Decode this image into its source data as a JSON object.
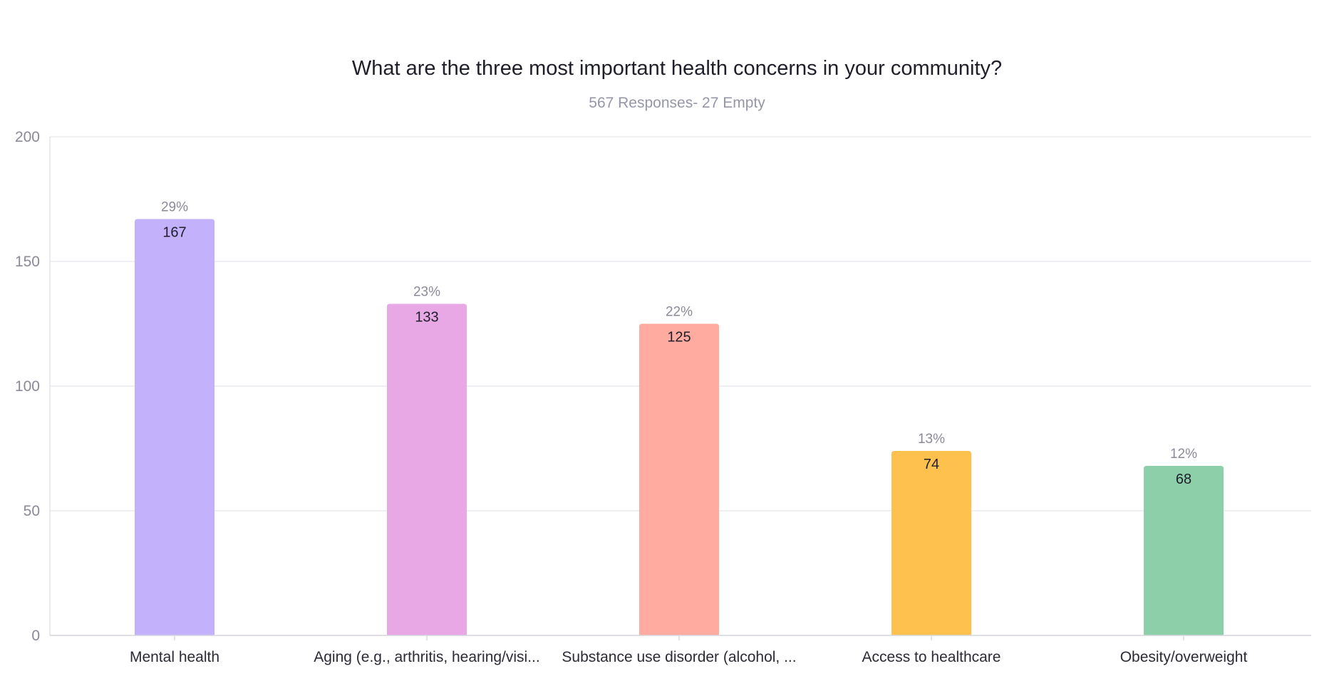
{
  "chart_data": {
    "type": "bar",
    "title": "What are the three most important health concerns in your community?",
    "subtitle": "567 Responses- 27 Empty",
    "categories": [
      "Mental health",
      "Aging (e.g., arthritis, hearing/visi...",
      "Substance use disorder (alcohol, ...",
      "Access to healthcare",
      "Obesity/overweight"
    ],
    "values": [
      167,
      133,
      125,
      74,
      68
    ],
    "percentages": [
      "29%",
      "23%",
      "22%",
      "13%",
      "12%"
    ],
    "colors": [
      "#c4b1fc",
      "#e8a8e6",
      "#ffab9f",
      "#ffc14d",
      "#8ccfa9"
    ],
    "ylim": [
      0,
      200
    ],
    "yticks": [
      0,
      50,
      100,
      150,
      200
    ],
    "grid": true,
    "xlabel": "",
    "ylabel": ""
  }
}
